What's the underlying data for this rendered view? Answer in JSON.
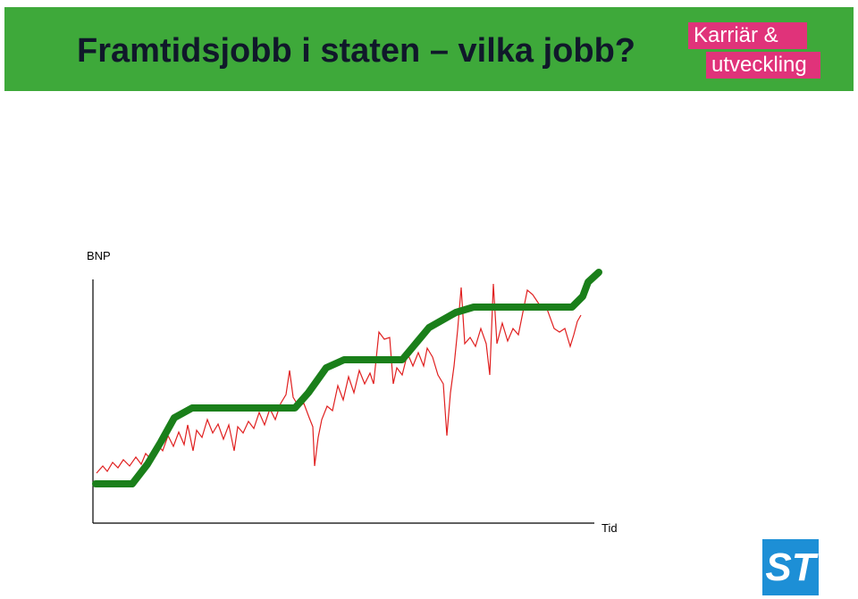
{
  "header": {
    "title": "Framtidsjobb i staten – vilka jobb?",
    "logo": [
      "Karriär &",
      "utveckling"
    ]
  },
  "illustration": {
    "y_label": "BNP",
    "x_label": "Tid"
  },
  "footer": {
    "logo": "ST"
  }
}
